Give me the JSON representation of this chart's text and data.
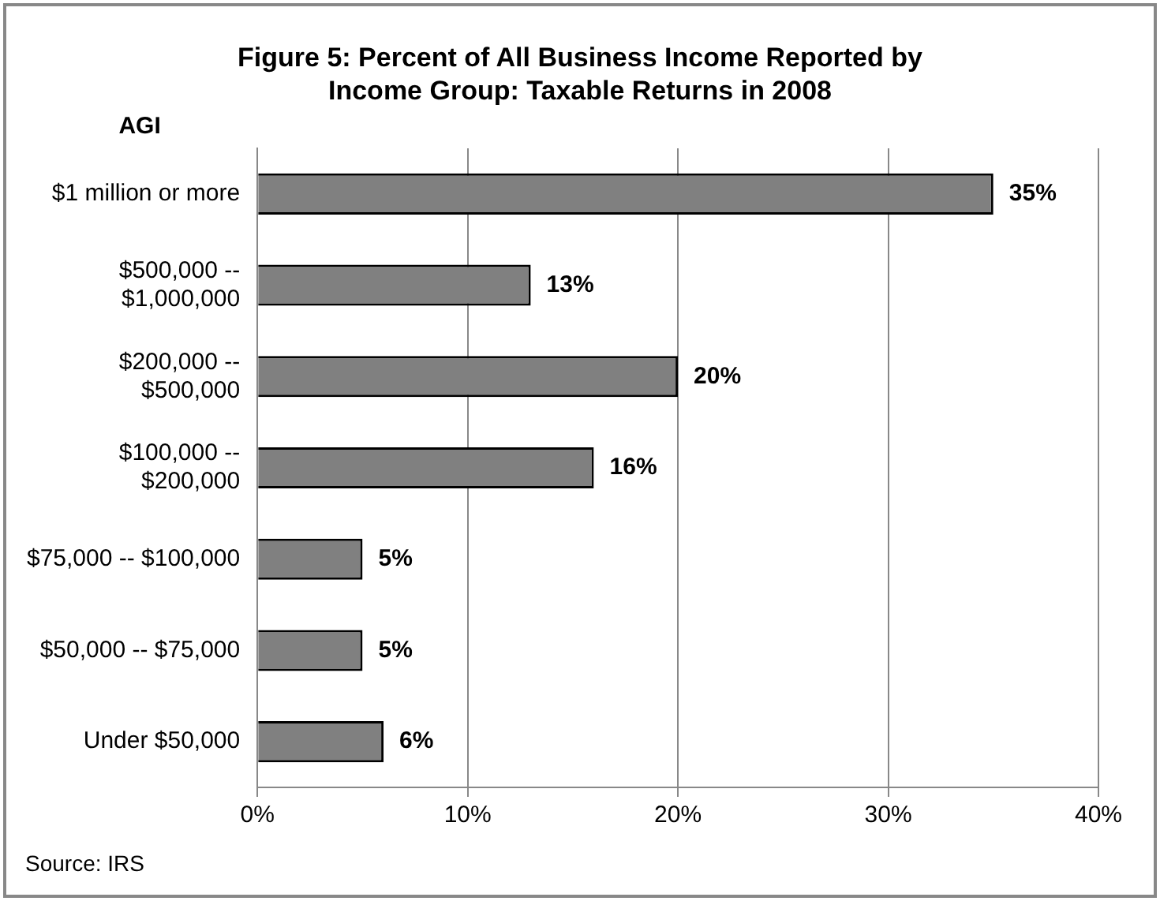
{
  "chart_data": {
    "type": "bar",
    "orientation": "horizontal",
    "title": "Figure 5: Percent of All Business Income Reported by\nIncome Group: Taxable Returns in 2008",
    "ylabel": "AGI",
    "categories": [
      "$1 million or more",
      "$500,000 --\n$1,000,000",
      "$200,000 --\n$500,000",
      "$100,000 --\n$200,000",
      "$75,000 -- $100,000",
      "$50,000 -- $75,000",
      "Under $50,000"
    ],
    "values": [
      35,
      13,
      20,
      16,
      5,
      5,
      6
    ],
    "value_labels": [
      "35%",
      "13%",
      "20%",
      "16%",
      "5%",
      "5%",
      "6%"
    ],
    "color": "#808080",
    "xlim": [
      0,
      40
    ],
    "xticks": [
      {
        "value": 0,
        "label": "0%"
      },
      {
        "value": 10,
        "label": "10%"
      },
      {
        "value": 20,
        "label": "20%"
      },
      {
        "value": 30,
        "label": "30%"
      },
      {
        "value": 40,
        "label": "40%"
      }
    ],
    "grid": "x",
    "legend": false,
    "annotations": [
      "Source: IRS"
    ]
  }
}
